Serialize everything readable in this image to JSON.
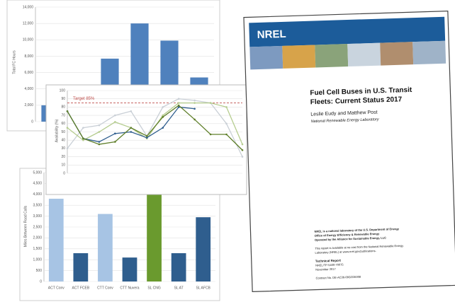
{
  "chart_data": [
    {
      "type": "bar",
      "ylabel": "Total FC Hours",
      "color": "#4f81bd",
      "values": [
        2000,
        4300,
        7700,
        12000,
        9900,
        5400
      ],
      "ylim": [
        0,
        14000
      ],
      "yticks": [
        0,
        {
          "value": 2000,
          "label": "2,000"
        },
        {
          "value": 4000,
          "label": "4,000"
        },
        {
          "value": 6000,
          "label": "6,000"
        },
        {
          "value": 8000,
          "label": "8,000"
        },
        {
          "value": 10000,
          "label": "10,000"
        },
        {
          "value": 12000,
          "label": "12,000"
        },
        {
          "value": 14000,
          "label": "14,000"
        }
      ],
      "grid": true
    },
    {
      "type": "line",
      "ylabel": "Availability (%)",
      "annotation": "Target 85%",
      "target": 85,
      "ylim": [
        0,
        100
      ],
      "yticks": [
        0,
        10,
        20,
        30,
        40,
        50,
        60,
        70,
        80,
        90,
        100
      ],
      "grid": true,
      "series": [
        {
          "color": "#c9cfd6",
          "values": [
            30,
            55,
            58,
            70,
            75,
            45,
            80,
            90,
            88,
            85,
            60,
            20
          ]
        },
        {
          "color": "#b5cc8e",
          "values": [
            55,
            40,
            50,
            62,
            55,
            42,
            70,
            85,
            85,
            85,
            80,
            35
          ]
        },
        {
          "color": "#2f5e8e",
          "values": [
            75,
            42,
            38,
            48,
            50,
            43,
            55,
            80,
            78,
            null,
            null,
            null
          ]
        },
        {
          "color": "#5f7f2a",
          "values": [
            75,
            42,
            35,
            38,
            55,
            45,
            68,
            82,
            65,
            47,
            47,
            28
          ]
        }
      ]
    },
    {
      "type": "bar",
      "ylabel": "Miles Between Road Calls",
      "categories": [
        "ACT Conv",
        "ACT FCEB",
        "CTT Conv",
        "CTT Nuvera",
        "SL CNG",
        "SL AT",
        "SL AFCB"
      ],
      "values": [
        3800,
        1300,
        3100,
        1100,
        4700,
        1300,
        2950
      ],
      "colors": [
        "#a7c4e4",
        "#2f5e8e",
        "#a7c4e4",
        "#2f5e8e",
        "#6a9a2e",
        "#2f5e8e",
        "#2f5e8e"
      ],
      "ylim": [
        0,
        5000
      ],
      "yticks": [
        0,
        500,
        {
          "value": 1000,
          "label": "1,000"
        },
        {
          "value": 1500,
          "label": "1,500"
        },
        {
          "value": 2000,
          "label": "2,000"
        },
        {
          "value": 2500,
          "label": "2,500"
        },
        {
          "value": 3000,
          "label": "3,000"
        },
        {
          "value": 3500,
          "label": "3,500"
        },
        {
          "value": 4000,
          "label": "4,000"
        },
        {
          "value": 4500,
          "label": "4,500"
        },
        {
          "value": 5000,
          "label": "5,000"
        }
      ],
      "grid": true
    }
  ],
  "report": {
    "logo": "NREL",
    "title": [
      "Fuel Cell Buses in U.S. Transit",
      "Fleets: Current Status 2017"
    ],
    "authors": "Leslie Eudy and Matthew Post",
    "organization": "National Renewable Energy Laboratory",
    "footer": [
      "NREL is a national laboratory of the U.S. Department of Energy",
      "Office of Energy Efficiency & Renewable Energy",
      "Operated by the Alliance for Sustainable Energy, LLC"
    ],
    "availability": [
      "This report is available at no cost from the National Renewable Energy",
      "Laboratory (NREL) at www.nrel.gov/publications."
    ],
    "report_type": "Technical Report",
    "report_number": "NREL/TP-5400-70075",
    "date": "November 2017",
    "contract": "Contract No. DE-AC36-08GO28308"
  }
}
